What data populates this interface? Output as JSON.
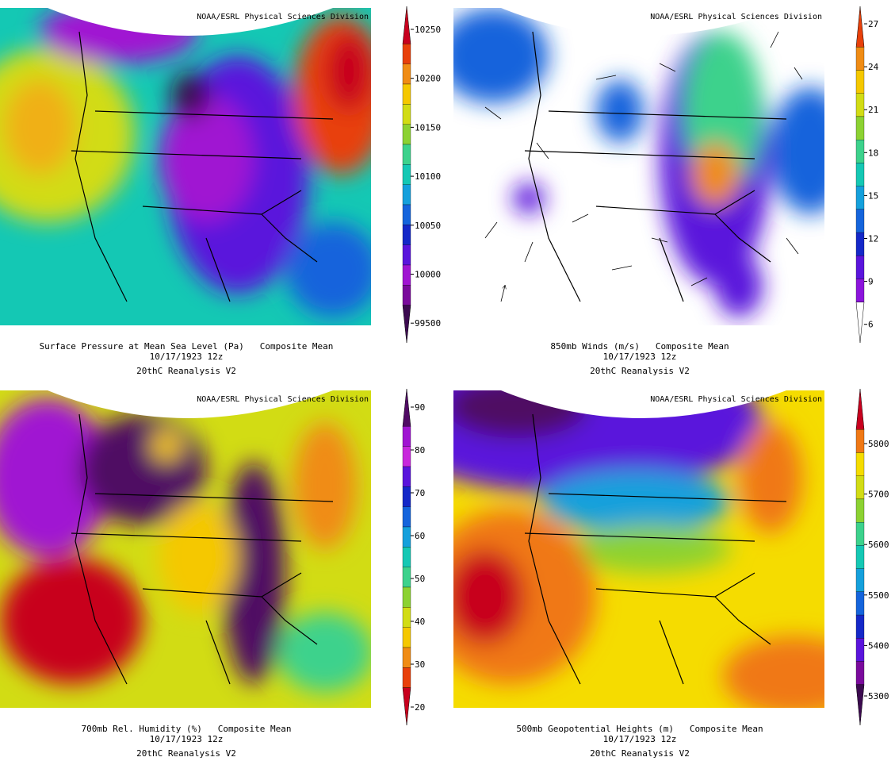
{
  "panels": [
    {
      "credit": "NOAA/ESRL Physical Sciences Division",
      "title": "Surface Pressure at Mean Sea Level (Pa)   Composite Mean",
      "date": "10/17/1923 12z",
      "source": "20thC Reanalysis V2",
      "colorbar_labels": [
        "10250",
        "10200",
        "10150",
        "10100",
        "10050",
        "10000",
        "99500"
      ],
      "colors": [
        "#c8001e",
        "#e8400a",
        "#f08c14",
        "#f5c800",
        "#d2dc14",
        "#8cd232",
        "#3cd28c",
        "#14c8b4",
        "#14a0dc",
        "#1464dc",
        "#1428c8",
        "#5a14dc",
        "#a014d2",
        "#7a0a9c",
        "#3c0a50"
      ]
    },
    {
      "credit": "NOAA/ESRL Physical Sciences Division",
      "title": "850mb Winds (m/s)   Composite Mean",
      "date": "10/17/1923 12z",
      "source": "20thC Reanalysis V2",
      "colorbar_labels": [
        "27",
        "24",
        "21",
        "18",
        "15",
        "12",
        "9",
        "6"
      ],
      "colors": [
        "#e8400a",
        "#f08c14",
        "#f5c800",
        "#d2dc14",
        "#8cd232",
        "#3cd28c",
        "#14c8b4",
        "#14a0dc",
        "#1464dc",
        "#1428c8",
        "#5a14dc",
        "#8c14dc",
        "#ffffff"
      ]
    },
    {
      "credit": "NOAA/ESRL Physical Sciences Division",
      "title": "700mb Rel. Humidity (%)   Composite Mean",
      "date": "10/17/1923 12z",
      "source": "20thC Reanalysis V2",
      "colorbar_labels": [
        "90",
        "80",
        "70",
        "60",
        "50",
        "40",
        "30",
        "20"
      ],
      "colors": [
        "#500a64",
        "#a014d2",
        "#c828dc",
        "#5a14dc",
        "#1428c8",
        "#1464dc",
        "#14a0dc",
        "#14c8b4",
        "#3cd28c",
        "#8cd232",
        "#d2dc14",
        "#f5c800",
        "#f08c14",
        "#e8400a",
        "#c8001e"
      ]
    },
    {
      "credit": "NOAA/ESRL Physical Sciences Division",
      "title": "500mb Geopotential Heights (m)   Composite Mean",
      "date": "10/17/1923 12z",
      "source": "20thC Reanalysis V2",
      "colorbar_labels": [
        "5800",
        "5700",
        "5600",
        "5500",
        "5400",
        "5300"
      ],
      "colors": [
        "#c8001e",
        "#f07814",
        "#f5dc00",
        "#d2dc14",
        "#8cd232",
        "#3cd28c",
        "#14c8b4",
        "#14a0dc",
        "#1464dc",
        "#1428c8",
        "#5a14dc",
        "#7a0a9c",
        "#3c0a50"
      ]
    }
  ]
}
